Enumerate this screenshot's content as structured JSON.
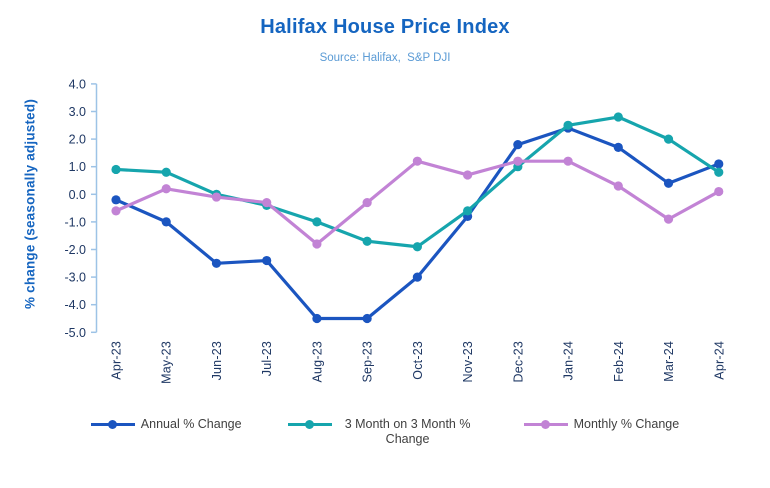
{
  "header": {
    "title": "Halifax House Price Index",
    "subtitle": "Source: Halifax,  S&P DJI"
  },
  "chart_data": {
    "type": "line",
    "title": "Halifax House Price Index",
    "subtitle": "Source: Halifax,  S&P DJI",
    "ylabel": "% change (seasonally adjusted)",
    "xlabel": "",
    "ylim": [
      -5.0,
      4.0
    ],
    "ytick_step": 1.0,
    "grid": false,
    "legend_position": "bottom",
    "categories": [
      "Apr-23",
      "May-23",
      "Jun-23",
      "Jul-23",
      "Aug-23",
      "Sep-23",
      "Oct-23",
      "Nov-23",
      "Dec-23",
      "Jan-24",
      "Feb-24",
      "Mar-24",
      "Apr-24"
    ],
    "series": [
      {
        "name": "Annual % Change",
        "color": "#1B55C0",
        "values": [
          -0.2,
          -1.0,
          -2.5,
          -2.4,
          -4.5,
          -4.5,
          -3.0,
          -0.8,
          1.8,
          2.4,
          1.7,
          0.4,
          1.1
        ]
      },
      {
        "name": "3 Month on 3 Month % Change",
        "color": "#16A5AD",
        "values": [
          0.9,
          0.8,
          0.0,
          -0.4,
          -1.0,
          -1.7,
          -1.9,
          -0.6,
          1.0,
          2.5,
          2.8,
          2.0,
          0.8
        ]
      },
      {
        "name": "Monthly % Change",
        "color": "#C283D5",
        "values": [
          -0.6,
          0.2,
          -0.1,
          -0.3,
          -1.8,
          -0.3,
          1.2,
          0.7,
          1.2,
          1.2,
          0.3,
          -0.9,
          0.1
        ]
      }
    ],
    "colors": {
      "title": "#1565C0",
      "subtitle": "#5B9BD5",
      "axis_line": "#9DC3E6",
      "tick_text": "#1F3864",
      "legend_text": "#3F3F3F"
    }
  }
}
